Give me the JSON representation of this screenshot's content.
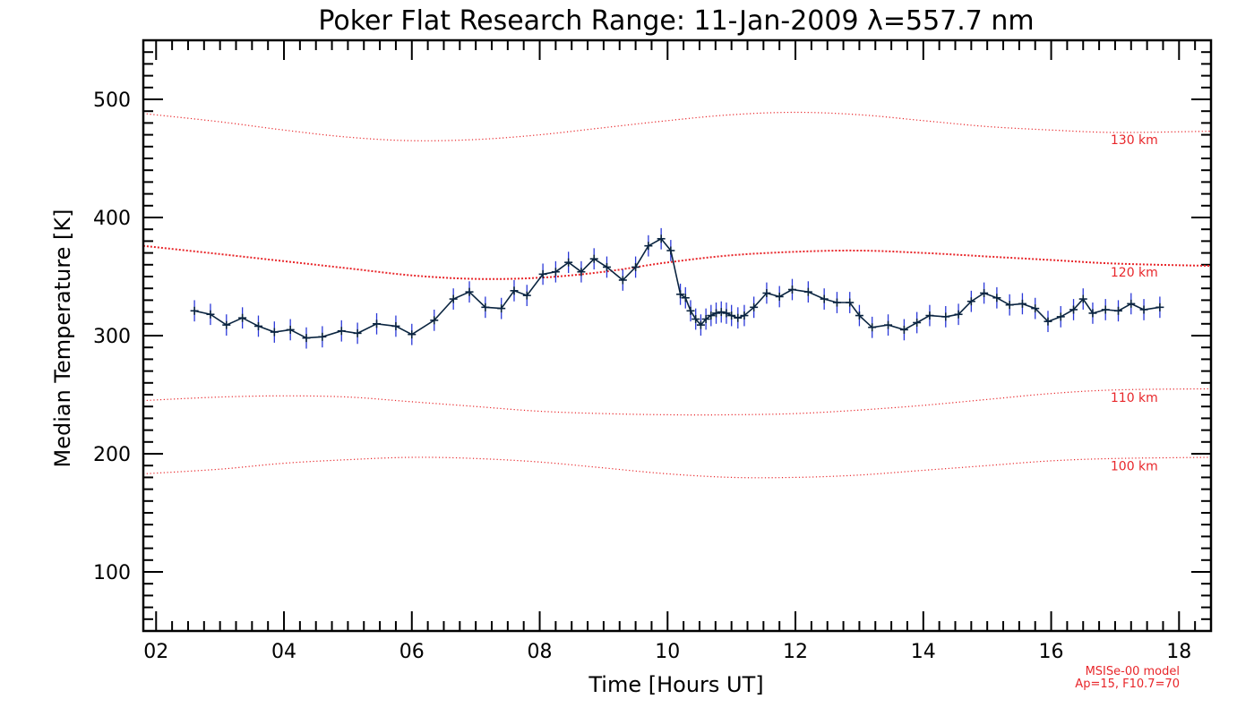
{
  "chart_data": {
    "type": "line",
    "title": "Poker Flat Research Range: 11-Jan-2009 λ=557.7 nm",
    "xlabel": "Time [Hours UT]",
    "ylabel": "Median Temperature [K]",
    "xlim": [
      1.8,
      18.5
    ],
    "ylim": [
      50,
      550
    ],
    "x_ticks": [
      "02",
      "04",
      "06",
      "08",
      "10",
      "12",
      "14",
      "16",
      "18"
    ],
    "y_ticks": [
      "100",
      "200",
      "300",
      "400",
      "500"
    ],
    "colors": {
      "data": "#0a2440",
      "error": "#2a38d8",
      "model": "#e8262a",
      "axis": "#000000"
    },
    "series": [
      {
        "name": "Median Temperature",
        "x": [
          2.6,
          2.85,
          3.1,
          3.35,
          3.6,
          3.85,
          4.1,
          4.35,
          4.6,
          4.9,
          5.15,
          5.45,
          5.75,
          6.0,
          6.35,
          6.65,
          6.9,
          7.15,
          7.4,
          7.6,
          7.8,
          8.05,
          8.25,
          8.45,
          8.65,
          8.85,
          9.05,
          9.3,
          9.5,
          9.7,
          9.9,
          10.05,
          10.2,
          10.28,
          10.36,
          10.44,
          10.52,
          10.6,
          10.68,
          10.76,
          10.84,
          10.92,
          11.0,
          11.1,
          11.2,
          11.35,
          11.55,
          11.75,
          11.95,
          12.2,
          12.45,
          12.65,
          12.85,
          13.0,
          13.2,
          13.45,
          13.7,
          13.9,
          14.1,
          14.35,
          14.55,
          14.75,
          14.95,
          15.15,
          15.35,
          15.55,
          15.75,
          15.95,
          16.15,
          16.35,
          16.5,
          16.65,
          16.85,
          17.05,
          17.25,
          17.45,
          17.7
        ],
        "values": [
          321,
          318,
          309,
          315,
          308,
          303,
          305,
          298,
          299,
          304,
          302,
          310,
          308,
          301,
          313,
          331,
          337,
          324,
          323,
          338,
          334,
          352,
          354,
          362,
          354,
          365,
          358,
          347,
          358,
          376,
          382,
          372,
          335,
          332,
          321,
          314,
          309,
          314,
          317,
          319,
          320,
          319,
          317,
          315,
          317,
          324,
          336,
          333,
          339,
          337,
          331,
          328,
          328,
          317,
          307,
          309,
          305,
          311,
          317,
          316,
          318,
          329,
          336,
          332,
          326,
          327,
          323,
          312,
          316,
          322,
          331,
          319,
          322,
          321,
          327,
          322,
          324
        ],
        "error": 9
      },
      {
        "name": "130 km",
        "model": true,
        "x": [
          1.8,
          3,
          4,
          5,
          6,
          7,
          8,
          9,
          10,
          11,
          12,
          13,
          14,
          15,
          16,
          17,
          18.5
        ],
        "values": [
          488,
          481,
          474,
          468,
          465,
          466,
          470,
          476,
          482,
          487,
          489,
          487,
          482,
          477,
          474,
          472,
          473
        ]
      },
      {
        "name": "120 km",
        "model": true,
        "x": [
          1.8,
          3,
          4,
          5,
          6,
          7,
          8,
          9,
          10,
          11,
          12,
          13,
          14,
          15,
          16,
          17,
          18.5
        ],
        "values": [
          376,
          369,
          363,
          357,
          351,
          348,
          349,
          354,
          362,
          368,
          371,
          372,
          370,
          367,
          364,
          361,
          359
        ]
      },
      {
        "name": "110 km",
        "model": true,
        "x": [
          1.8,
          3,
          4,
          5,
          6,
          7,
          8,
          9,
          10,
          11,
          12,
          13,
          14,
          15,
          16,
          17,
          18.5
        ],
        "values": [
          245,
          248,
          249,
          248,
          244,
          240,
          236,
          234,
          233,
          233,
          234,
          237,
          241,
          246,
          251,
          254,
          255
        ]
      },
      {
        "name": "100 km",
        "model": true,
        "x": [
          1.8,
          3,
          4,
          5,
          6,
          7,
          8,
          9,
          10,
          11,
          12,
          13,
          14,
          15,
          16,
          17,
          18.5
        ],
        "values": [
          183,
          187,
          192,
          195,
          197,
          196,
          193,
          188,
          183,
          180,
          180,
          182,
          186,
          190,
          194,
          196,
          197
        ]
      }
    ],
    "model_labels": [
      {
        "text": "130 km",
        "x": 17.3,
        "y": 462
      },
      {
        "text": "120 km",
        "x": 17.3,
        "y": 350
      },
      {
        "text": "110 km",
        "x": 17.3,
        "y": 244
      },
      {
        "text": "100 km",
        "x": 17.3,
        "y": 186
      }
    ],
    "annotation_lines": [
      "MSISe-00 model",
      "Ap=15, F10.7=70"
    ]
  }
}
